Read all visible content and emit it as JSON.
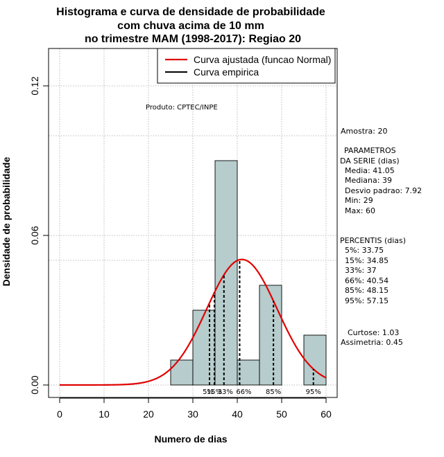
{
  "chart_data": {
    "type": "bar",
    "title": [
      "Histograma e curva de densidade de probabilidade",
      "com chuva acima de 10 mm",
      "no trimestre MAM (1998-2017): Regiao 20"
    ],
    "xlabel": "Numero de dias",
    "ylabel": "Densidade de probabilidade",
    "xlim": [
      -2.5,
      62.5
    ],
    "ylim": [
      -0.005,
      0.135
    ],
    "x_ticks": [
      0,
      10,
      20,
      30,
      40,
      50,
      60
    ],
    "x_tick_labels": [
      "0",
      "10",
      "20",
      "30",
      "40",
      "50",
      "60"
    ],
    "y_ticks": [
      0.0,
      0.06,
      0.12
    ],
    "y_tick_labels": [
      "0.00",
      "0.06",
      "0.12"
    ],
    "grid_x": [
      0,
      10,
      20,
      30,
      40,
      50,
      60
    ],
    "grid_y": [
      0.0,
      0.05,
      0.06,
      0.1,
      0.12
    ],
    "histogram": {
      "bin_edges": [
        25,
        30,
        35,
        40,
        45,
        50,
        55,
        60
      ],
      "density": [
        0.01,
        0.03,
        0.09,
        0.01,
        0.04,
        0.0,
        0.02
      ],
      "fill": "#b7cccc"
    },
    "normal_fit": {
      "mean": 41.05,
      "sd": 7.92,
      "x_from": 0,
      "x_to": 60,
      "color": "#e00000"
    },
    "percentile_lines": [
      {
        "label": "5%",
        "x": 33.75
      },
      {
        "label": "15%",
        "x": 34.85
      },
      {
        "label": "33%",
        "x": 37
      },
      {
        "label": "66%",
        "x": 40.54
      },
      {
        "label": "85%",
        "x": 48.15
      },
      {
        "label": "95%",
        "x": 57.15
      }
    ],
    "legend": {
      "position": "top-right",
      "entries": [
        {
          "label": "Curva ajustada (funcao Normal)",
          "color": "#e00000"
        },
        {
          "label": "Curva empirica",
          "color": "#000000"
        }
      ]
    },
    "annotation_product": "Produto: CPTEC/INPE",
    "side_panel": {
      "amostra": "Amostra: 20",
      "parametros": [
        "PARAMETROS",
        "DA SERIE (dias)",
        "Media: 41.05",
        "Mediana: 39",
        "Desvio padrao: 7.92",
        "Min: 29",
        "Max: 60"
      ],
      "percentis": [
        "PERCENTIS (dias)",
        "5%: 33.75",
        "15%: 34.85",
        "33%: 37",
        "66%: 40.54",
        "85%: 48.15",
        "95%: 57.15"
      ],
      "curtose": "Curtose: 1.03",
      "assimetria": "Assimetria: 0.45"
    }
  }
}
